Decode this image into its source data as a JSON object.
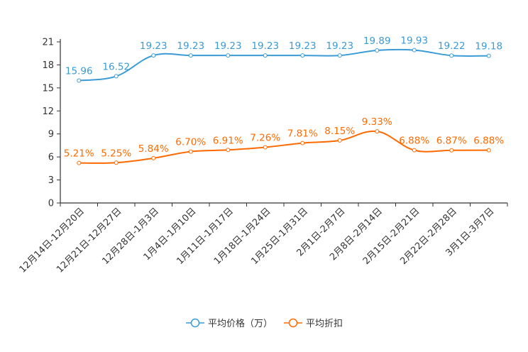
{
  "chart_data": {
    "type": "line",
    "categories": [
      "12月14日-12月20日",
      "12月21日-12月27日",
      "12月28日-1月3日",
      "1月4日-1月10日",
      "1月11日-1月17日",
      "1月18日-1月24日",
      "1月25日-1月31日",
      "2月1日-2月7日",
      "2月8日-2月14日",
      "2月15日-2月21日",
      "2月22日-2月28日",
      "3月1日-3月7日"
    ],
    "series": [
      {
        "name": "平均价格（万）",
        "color": "#3a9bd5",
        "values": [
          15.96,
          16.52,
          19.23,
          19.23,
          19.23,
          19.23,
          19.23,
          19.23,
          19.89,
          19.93,
          19.22,
          19.18
        ],
        "labels": [
          "15.96",
          "16.52",
          "19.23",
          "19.23",
          "19.23",
          "19.23",
          "19.23",
          "19.23",
          "19.89",
          "19.93",
          "19.22",
          "19.18"
        ]
      },
      {
        "name": "平均折扣",
        "color": "#ff6a00",
        "values": [
          5.21,
          5.25,
          5.84,
          6.7,
          6.91,
          7.26,
          7.81,
          8.15,
          9.33,
          6.88,
          6.87,
          6.88
        ],
        "labels": [
          "5.21%",
          "5.25%",
          "5.84%",
          "6.70%",
          "6.91%",
          "7.26%",
          "7.81%",
          "8.15%",
          "9.33%",
          "6.88%",
          "6.87%",
          "6.88%"
        ]
      }
    ],
    "yticks": [
      "0",
      "3",
      "6",
      "9",
      "12",
      "15",
      "18",
      "21"
    ],
    "ylim": [
      0,
      21
    ],
    "legend": "bottom-center",
    "grid": false
  }
}
